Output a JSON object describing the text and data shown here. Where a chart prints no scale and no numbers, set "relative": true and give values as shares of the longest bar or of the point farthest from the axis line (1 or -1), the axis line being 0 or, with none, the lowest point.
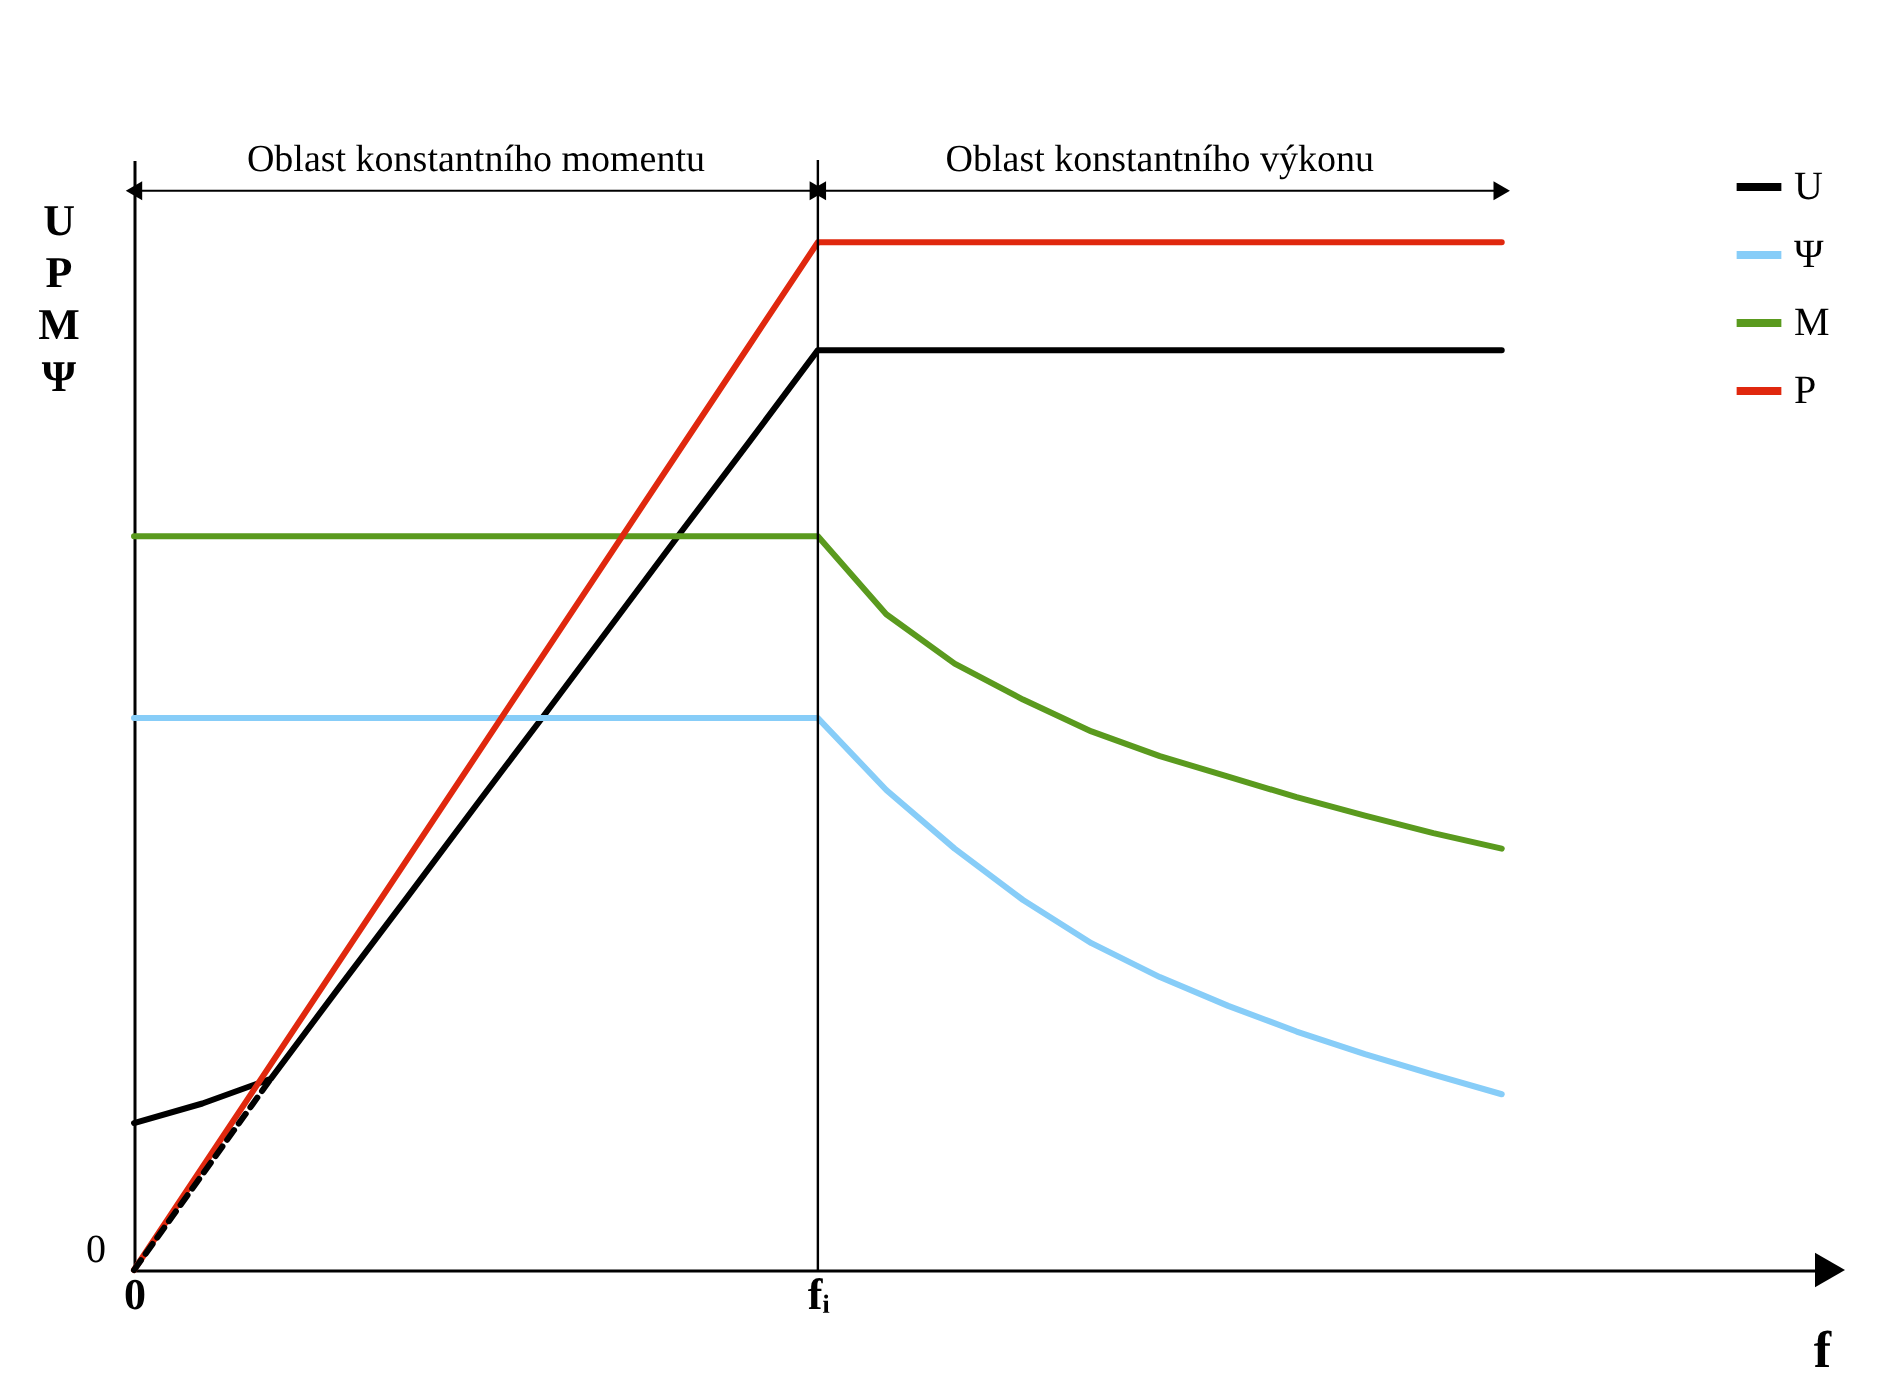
{
  "chart_data": {
    "type": "line",
    "relative": true,
    "xlabel": "f",
    "ylabel": "U P M Ψ",
    "categories": [
      "0",
      null,
      null,
      null,
      null,
      null,
      null,
      null,
      null,
      null,
      "fᵢ",
      null,
      null,
      null,
      null,
      null,
      null,
      null,
      null,
      null,
      null,
      null,
      null,
      null,
      null
    ],
    "grid": false,
    "legend": "top right",
    "marker": "none",
    "series": [
      {
        "name": "U",
        "color": "#000000",
        "values": [
          0.143,
          0.162,
          0.186,
          0.275,
          0.363,
          0.452,
          0.54,
          0.629,
          0.718,
          0.806,
          0.895,
          0.895,
          0.895,
          0.895,
          0.895,
          0.895,
          0.895,
          0.895,
          0.895,
          0.895,
          0.895,
          null,
          null,
          null,
          null
        ]
      },
      {
        "name": "Ψ",
        "color": "#87cdf8",
        "values": [
          0.537,
          0.537,
          0.537,
          0.537,
          0.537,
          0.537,
          0.537,
          0.537,
          0.537,
          0.537,
          0.537,
          0.467,
          0.41,
          0.36,
          0.318,
          0.285,
          0.257,
          0.232,
          0.21,
          0.19,
          0.171,
          null,
          null,
          null,
          null
        ]
      },
      {
        "name": "M",
        "color": "#5a9a1e",
        "values": [
          0.714,
          0.714,
          0.714,
          0.714,
          0.714,
          0.714,
          0.714,
          0.714,
          0.714,
          0.714,
          0.714,
          0.638,
          0.59,
          0.555,
          0.524,
          0.5,
          0.48,
          0.46,
          0.442,
          0.425,
          0.41,
          null,
          null,
          null,
          null
        ]
      },
      {
        "name": "P",
        "color": "#e0280e",
        "values": [
          0,
          0.1,
          0.2,
          0.3,
          0.4,
          0.5,
          0.6,
          0.7,
          0.8,
          0.9,
          1,
          1,
          1,
          1,
          1,
          1,
          1,
          1,
          1,
          1,
          1,
          null,
          null,
          null,
          null
        ]
      },
      {
        "color": "#000000",
        "line_style": "dashed",
        "values": [
          0,
          0.093,
          0.186,
          null,
          null,
          null,
          null,
          null,
          null,
          null,
          null,
          null,
          null,
          null,
          null,
          null,
          null,
          null,
          null,
          null,
          null,
          null,
          null,
          null,
          null
        ]
      }
    ],
    "ref_lines": [
      {
        "axis": "x",
        "value": "fᵢ",
        "color": "#000000"
      }
    ],
    "annotations": [
      "Oblast konstantního momentu",
      "Oblast konstantního výkonu",
      {
        "text": "0",
        "x": "0",
        "y": 0
      }
    ]
  }
}
